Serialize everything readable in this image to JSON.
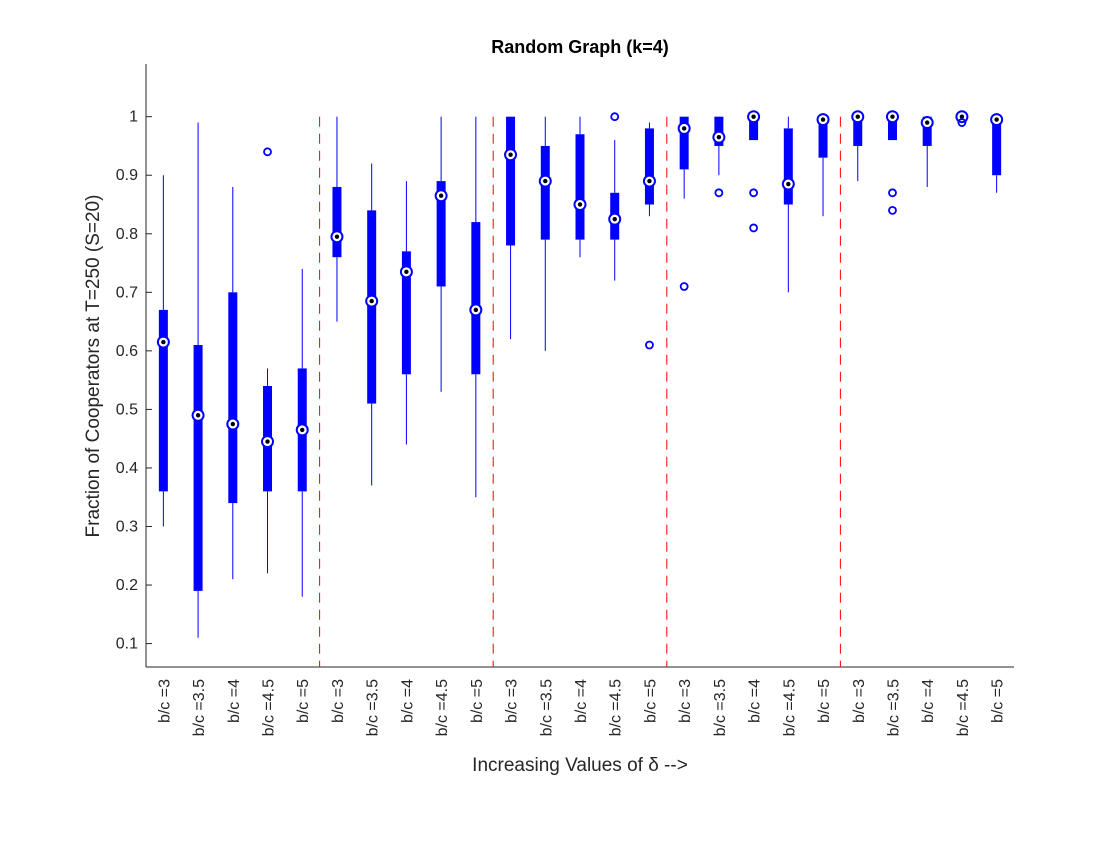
{
  "colors": {
    "box": "#0000ff",
    "divider": "#ff0000",
    "median_ring": "#ffffff",
    "median_dot": "#000000",
    "axis": "#262626"
  },
  "chart_data": {
    "type": "boxplot",
    "title": "Random Graph (k=4)",
    "xlabel": "Increasing Values of δ -->",
    "ylabel": "Fraction of Cooperators at T=250 (S=20)",
    "ylim": [
      0.06,
      1.09
    ],
    "yticks": [
      0.1,
      0.2,
      0.3,
      0.4,
      0.5,
      0.6,
      0.7,
      0.8,
      0.9,
      1
    ],
    "ytick_labels": [
      "0.1",
      "0.2",
      "0.3",
      "0.4",
      "0.5",
      "0.6",
      "0.7",
      "0.8",
      "0.9",
      "1"
    ],
    "groups": 5,
    "group_dividers_after": [
      5,
      10,
      15,
      20
    ],
    "categories": [
      "b/c =3",
      "b/c =3.5",
      "b/c =4",
      "b/c =4.5",
      "b/c =5",
      "b/c =3",
      "b/c =3.5",
      "b/c =4",
      "b/c =4.5",
      "b/c =5",
      "b/c =3",
      "b/c =3.5",
      "b/c =4",
      "b/c =4.5",
      "b/c =5",
      "b/c =3",
      "b/c =3.5",
      "b/c =4",
      "b/c =4.5",
      "b/c =5",
      "b/c =3",
      "b/c =3.5",
      "b/c =4",
      "b/c =4.5",
      "b/c =5"
    ],
    "boxes": [
      {
        "wlo": 0.3,
        "q1": 0.36,
        "med": 0.615,
        "q3": 0.67,
        "whi": 0.9,
        "outliers": []
      },
      {
        "wlo": 0.11,
        "q1": 0.19,
        "med": 0.49,
        "q3": 0.61,
        "whi": 0.99,
        "outliers": []
      },
      {
        "wlo": 0.21,
        "q1": 0.34,
        "med": 0.475,
        "q3": 0.7,
        "whi": 0.88,
        "outliers": []
      },
      {
        "wlo": 0.22,
        "q1": 0.36,
        "med": 0.445,
        "q3": 0.54,
        "whi": 0.57,
        "outliers": [
          0.94
        ]
      },
      {
        "wlo": 0.18,
        "q1": 0.36,
        "med": 0.465,
        "q3": 0.57,
        "whi": 0.74,
        "outliers": []
      },
      {
        "wlo": 0.65,
        "q1": 0.76,
        "med": 0.795,
        "q3": 0.88,
        "whi": 1.0,
        "outliers": []
      },
      {
        "wlo": 0.37,
        "q1": 0.51,
        "med": 0.685,
        "q3": 0.84,
        "whi": 0.92,
        "outliers": []
      },
      {
        "wlo": 0.44,
        "q1": 0.56,
        "med": 0.735,
        "q3": 0.77,
        "whi": 0.89,
        "outliers": []
      },
      {
        "wlo": 0.53,
        "q1": 0.71,
        "med": 0.865,
        "q3": 0.89,
        "whi": 1.0,
        "outliers": []
      },
      {
        "wlo": 0.35,
        "q1": 0.56,
        "med": 0.67,
        "q3": 0.82,
        "whi": 1.0,
        "outliers": []
      },
      {
        "wlo": 0.62,
        "q1": 0.78,
        "med": 0.935,
        "q3": 1.0,
        "whi": 1.0,
        "outliers": []
      },
      {
        "wlo": 0.6,
        "q1": 0.79,
        "med": 0.89,
        "q3": 0.95,
        "whi": 1.0,
        "outliers": []
      },
      {
        "wlo": 0.76,
        "q1": 0.79,
        "med": 0.85,
        "q3": 0.97,
        "whi": 1.0,
        "outliers": []
      },
      {
        "wlo": 0.72,
        "q1": 0.79,
        "med": 0.825,
        "q3": 0.87,
        "whi": 0.96,
        "outliers": [
          1.0
        ]
      },
      {
        "wlo": 0.83,
        "q1": 0.85,
        "med": 0.89,
        "q3": 0.98,
        "whi": 0.99,
        "outliers": [
          0.61
        ]
      },
      {
        "wlo": 0.86,
        "q1": 0.91,
        "med": 0.98,
        "q3": 1.0,
        "whi": 1.0,
        "outliers": [
          0.71
        ]
      },
      {
        "wlo": 0.9,
        "q1": 0.95,
        "med": 0.965,
        "q3": 1.0,
        "whi": 1.0,
        "outliers": [
          0.87
        ]
      },
      {
        "wlo": 0.96,
        "q1": 0.96,
        "med": 1.0,
        "q3": 1.0,
        "whi": 1.0,
        "outliers": [
          0.87,
          0.81
        ]
      },
      {
        "wlo": 0.7,
        "q1": 0.85,
        "med": 0.885,
        "q3": 0.98,
        "whi": 1.0,
        "outliers": []
      },
      {
        "wlo": 0.83,
        "q1": 0.93,
        "med": 0.995,
        "q3": 1.0,
        "whi": 1.0,
        "outliers": []
      },
      {
        "wlo": 0.89,
        "q1": 0.95,
        "med": 1.0,
        "q3": 1.0,
        "whi": 1.0,
        "outliers": []
      },
      {
        "wlo": 0.96,
        "q1": 0.96,
        "med": 1.0,
        "q3": 1.0,
        "whi": 1.0,
        "outliers": [
          0.87,
          0.84
        ]
      },
      {
        "wlo": 0.88,
        "q1": 0.95,
        "med": 0.99,
        "q3": 1.0,
        "whi": 1.0,
        "outliers": []
      },
      {
        "wlo": 0.99,
        "q1": 0.99,
        "med": 1.0,
        "q3": 1.0,
        "whi": 1.0,
        "outliers": [
          0.99
        ]
      },
      {
        "wlo": 0.87,
        "q1": 0.9,
        "med": 0.995,
        "q3": 1.0,
        "whi": 1.0,
        "outliers": []
      }
    ]
  }
}
